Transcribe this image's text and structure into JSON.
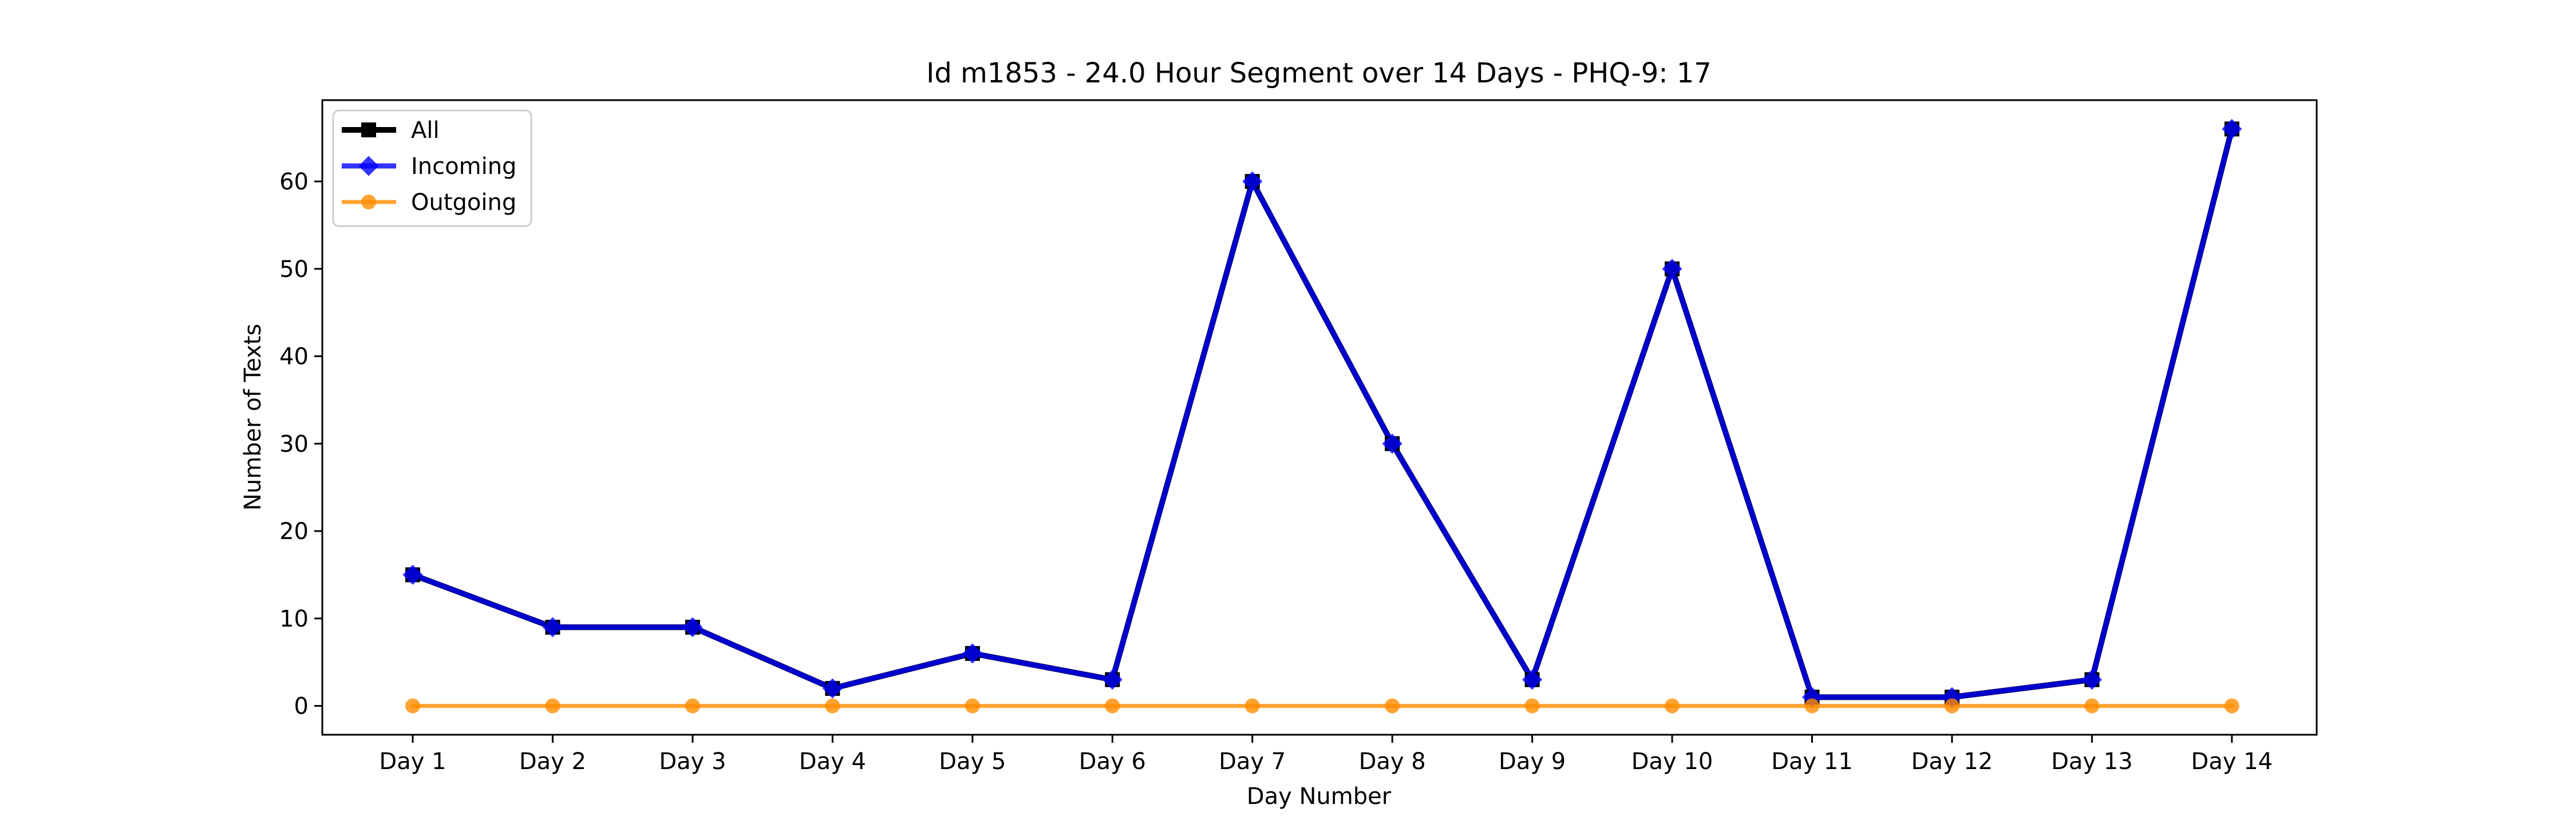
{
  "chart_data": {
    "type": "line",
    "title": "Id m1853 - 24.0 Hour Segment over 14 Days - PHQ-9: 17",
    "xlabel": "Day Number",
    "ylabel": "Number of Texts",
    "categories": [
      "Day 1",
      "Day 2",
      "Day 3",
      "Day 4",
      "Day 5",
      "Day 6",
      "Day 7",
      "Day 8",
      "Day 9",
      "Day 10",
      "Day 11",
      "Day 12",
      "Day 13",
      "Day 14"
    ],
    "ylim": [
      -3.3,
      69.3
    ],
    "yticks": [
      0,
      10,
      20,
      30,
      40,
      50,
      60
    ],
    "grid": false,
    "legend_position": "top-left",
    "series": [
      {
        "name": "All",
        "color": "#000000",
        "marker": "square",
        "values": [
          15,
          9,
          9,
          2,
          6,
          3,
          60,
          30,
          3,
          50,
          1,
          1,
          3,
          66
        ]
      },
      {
        "name": "Incoming",
        "color": "#0000ff",
        "marker": "diamond",
        "values": [
          15,
          9,
          9,
          2,
          6,
          3,
          60,
          30,
          3,
          50,
          1,
          1,
          3,
          66
        ]
      },
      {
        "name": "Outgoing",
        "color": "#ff8c00",
        "marker": "circle",
        "values": [
          0,
          0,
          0,
          0,
          0,
          0,
          0,
          0,
          0,
          0,
          0,
          0,
          0,
          0
        ]
      }
    ]
  }
}
